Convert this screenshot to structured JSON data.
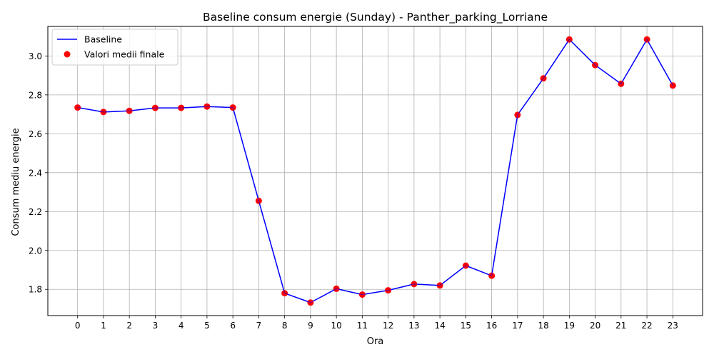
{
  "chart_data": {
    "type": "line",
    "title": "Baseline consum energie (Sunday) - Panther_parking_Lorriane",
    "xlabel": "Ora",
    "ylabel": "Consum mediu energie",
    "x": [
      0,
      1,
      2,
      3,
      4,
      5,
      6,
      7,
      8,
      9,
      10,
      11,
      12,
      13,
      14,
      15,
      16,
      17,
      18,
      19,
      20,
      21,
      22,
      23
    ],
    "series": [
      {
        "name": "Baseline",
        "kind": "line",
        "color": "#0000ff",
        "values": [
          2.735,
          2.712,
          2.718,
          2.733,
          2.733,
          2.74,
          2.735,
          2.255,
          1.78,
          1.732,
          1.803,
          1.773,
          1.795,
          1.827,
          1.82,
          1.922,
          1.87,
          2.697,
          2.885,
          3.085,
          2.953,
          2.857,
          3.085,
          2.848
        ]
      },
      {
        "name": "Valori medii finale",
        "kind": "scatter",
        "color": "#ff0000",
        "values": [
          2.735,
          2.712,
          2.718,
          2.733,
          2.733,
          2.74,
          2.735,
          2.255,
          1.78,
          1.732,
          1.803,
          1.773,
          1.795,
          1.827,
          1.82,
          1.922,
          1.87,
          2.697,
          2.885,
          3.085,
          2.953,
          2.857,
          3.085,
          2.848
        ]
      }
    ],
    "xticks": [
      "0",
      "1",
      "2",
      "3",
      "4",
      "5",
      "6",
      "7",
      "8",
      "9",
      "10",
      "11",
      "12",
      "13",
      "14",
      "15",
      "16",
      "17",
      "18",
      "19",
      "20",
      "21",
      "22",
      "23"
    ],
    "yticks": [
      "1.8",
      "2.0",
      "2.2",
      "2.4",
      "2.6",
      "2.8",
      "3.0"
    ],
    "xlim": [
      -1.15,
      24.15
    ],
    "ylim": [
      1.665,
      3.152
    ],
    "grid": true,
    "legend": "top-left"
  }
}
